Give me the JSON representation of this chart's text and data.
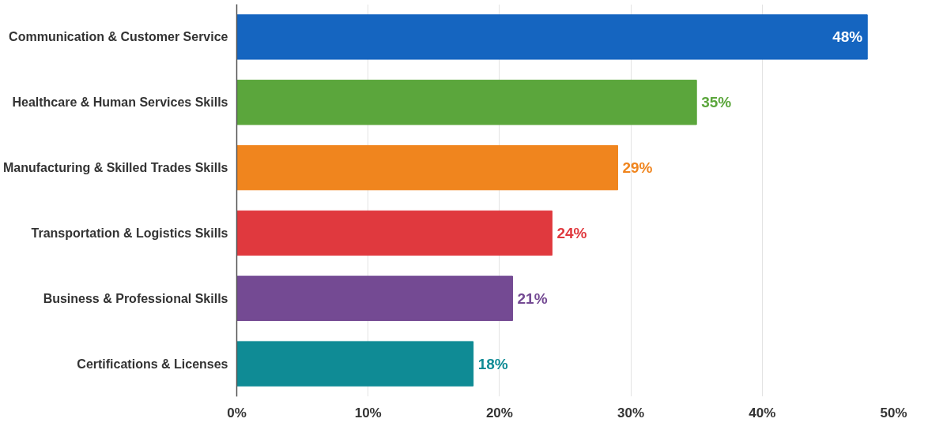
{
  "chart_data": {
    "type": "bar",
    "orientation": "horizontal",
    "categories": [
      "Communication & Customer Service",
      "Healthcare & Human Services Skills",
      "Manufacturing & Skilled Trades Skills",
      "Transportation & Logistics Skills",
      "Business & Professional Skills",
      "Certifications & Licenses"
    ],
    "values": [
      48,
      35,
      29,
      24,
      21,
      18
    ],
    "value_labels": [
      "48%",
      "35%",
      "29%",
      "24%",
      "21%",
      "18%"
    ],
    "colors": [
      "#1565c0",
      "#5ba63c",
      "#f0851e",
      "#e0393e",
      "#744a93",
      "#0f8b95"
    ],
    "xlim": [
      0,
      50
    ],
    "xticks": [
      {
        "value": 0,
        "label": "0%"
      },
      {
        "value": 10,
        "label": "10%"
      },
      {
        "value": 20,
        "label": "20%"
      },
      {
        "value": 30,
        "label": "30%"
      },
      {
        "value": 40,
        "label": "40%"
      },
      {
        "value": 50,
        "label": "50%"
      }
    ],
    "grid": "x"
  }
}
